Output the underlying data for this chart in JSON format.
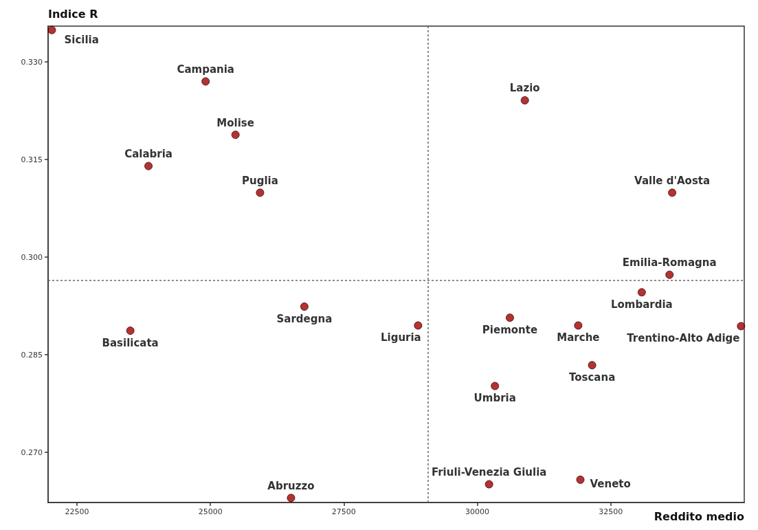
{
  "chart_data": {
    "type": "scatter",
    "xlabel": "Reddito medio",
    "ylabel": "Indice R",
    "x": [
      22030,
      24910,
      25470,
      23840,
      25930,
      30890,
      33650,
      33600,
      33080,
      34940,
      26760,
      23500,
      28890,
      30610,
      31890,
      32150,
      30330,
      30220,
      31930,
      26510
    ],
    "series": [
      {
        "color": "#a00000",
        "values": [
          0.3349,
          0.327,
          0.3188,
          0.314,
          0.3099,
          0.3241,
          0.3099,
          0.2973,
          0.2946,
          0.2894,
          0.2924,
          0.2887,
          0.2895,
          0.2907,
          0.2895,
          0.2834,
          0.2802,
          0.2651,
          0.2658,
          0.263
        ]
      }
    ],
    "annotations": [
      {
        "text": "Sicilia",
        "x": 22030,
        "y": 0.3349
      },
      {
        "text": "Campania",
        "x": 24910,
        "y": 0.327
      },
      {
        "text": "Molise",
        "x": 25470,
        "y": 0.3188
      },
      {
        "text": "Calabria",
        "x": 23840,
        "y": 0.314
      },
      {
        "text": "Puglia",
        "x": 25930,
        "y": 0.3099
      },
      {
        "text": "Lazio",
        "x": 30890,
        "y": 0.3241
      },
      {
        "text": "Valle d'Aosta",
        "x": 33650,
        "y": 0.3099
      },
      {
        "text": "Emilia-Romagna",
        "x": 33600,
        "y": 0.2973
      },
      {
        "text": "Lombardia",
        "x": 33080,
        "y": 0.2946
      },
      {
        "text": "Trentino-Alto Adige",
        "x": 34940,
        "y": 0.2894
      },
      {
        "text": "Sardegna",
        "x": 26760,
        "y": 0.2924
      },
      {
        "text": "Basilicata",
        "x": 23500,
        "y": 0.2887
      },
      {
        "text": "Liguria",
        "x": 28890,
        "y": 0.2895
      },
      {
        "text": "Piemonte",
        "x": 30610,
        "y": 0.2907
      },
      {
        "text": "Marche",
        "x": 31890,
        "y": 0.2895
      },
      {
        "text": "Toscana",
        "x": 32150,
        "y": 0.2834
      },
      {
        "text": "Umbria",
        "x": 30330,
        "y": 0.2802
      },
      {
        "text": "Friuli-Venezia Giulia",
        "x": 30220,
        "y": 0.2651
      },
      {
        "text": "Veneto",
        "x": 31930,
        "y": 0.2658
      },
      {
        "text": "Abruzzo",
        "x": 26510,
        "y": 0.263
      }
    ],
    "xlim": [
      21960,
      35000
    ],
    "xticks": [
      22500,
      25000,
      27500,
      30000,
      32500
    ],
    "ylim": [
      0.2623,
      0.3355
    ],
    "yticks": [
      {
        "value": 0.27,
        "label": "0.270"
      },
      0.285,
      {
        "value": 0.3,
        "label": "0.300"
      },
      0.315,
      {
        "value": 0.33,
        "label": "0.330"
      }
    ],
    "ref_lines": [
      {
        "axis": "x",
        "value": 29070,
        "color": "#666666",
        "line_style": "dashed"
      },
      {
        "axis": "y",
        "value": 0.2964,
        "color": "#666666",
        "line_style": "dashed"
      }
    ],
    "grid": false,
    "marker": "circle"
  }
}
